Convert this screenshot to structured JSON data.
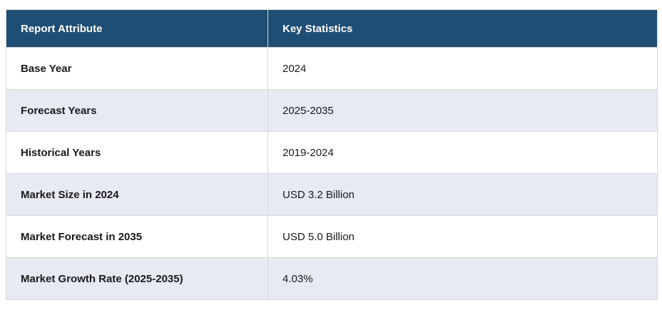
{
  "table": {
    "columns": [
      {
        "label": "Report Attribute"
      },
      {
        "label": "Key Statistics"
      }
    ],
    "rows": [
      {
        "attribute": "Base Year",
        "value": "2024"
      },
      {
        "attribute": "Forecast Years",
        "value": "2025-2035"
      },
      {
        "attribute": "Historical Years",
        "value": "2019-2024"
      },
      {
        "attribute": "Market Size in 2024",
        "value": "USD 3.2 Billion"
      },
      {
        "attribute": "Market Forecast in 2035",
        "value": "USD 5.0 Billion"
      },
      {
        "attribute": "Market Growth Rate (2025-2035)",
        "value": "4.03%"
      }
    ],
    "colors": {
      "header_bg": "#1F4E74",
      "header_text": "#FFFFFF",
      "row_bg": "#FFFFFF",
      "row_alt_bg": "#E7E9F3",
      "border": "#D9D9D9",
      "body_text": "#1A1A1A"
    }
  }
}
